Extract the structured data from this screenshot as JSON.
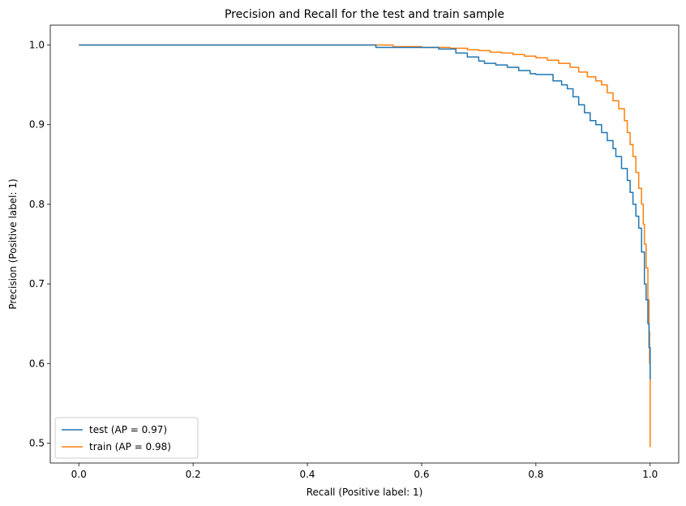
{
  "chart_data": {
    "type": "line",
    "title": "Precision and Recall for the test and train sample",
    "xlabel": "Recall (Positive label: 1)",
    "ylabel": "Precision (Positive label: 1)",
    "xlim": [
      -0.05,
      1.05
    ],
    "ylim": [
      0.475,
      1.025
    ],
    "xticks": [
      0.0,
      0.2,
      0.4,
      0.6,
      0.8,
      1.0
    ],
    "xtick_labels": [
      "0.0",
      "0.2",
      "0.4",
      "0.6",
      "0.8",
      "1.0"
    ],
    "yticks": [
      0.5,
      0.6,
      0.7,
      0.8,
      0.9,
      1.0
    ],
    "ytick_labels": [
      "0.5",
      "0.6",
      "0.7",
      "0.8",
      "0.9",
      "1.0"
    ],
    "grid": false,
    "legend_position": "lower-left",
    "series": [
      {
        "name": "test (AP = 0.97)",
        "color": "#1f77b4",
        "x": [
          0.0,
          0.51,
          0.52,
          0.55,
          0.58,
          0.6,
          0.62,
          0.63,
          0.66,
          0.68,
          0.7,
          0.71,
          0.73,
          0.75,
          0.77,
          0.79,
          0.8,
          0.82,
          0.83,
          0.845,
          0.855,
          0.865,
          0.875,
          0.885,
          0.895,
          0.905,
          0.915,
          0.925,
          0.935,
          0.94,
          0.95,
          0.96,
          0.965,
          0.97,
          0.975,
          0.98,
          0.985,
          0.99,
          0.993,
          0.996,
          0.998,
          1.0
        ],
        "y": [
          1.0,
          1.0,
          0.997,
          0.997,
          0.997,
          0.997,
          0.997,
          0.995,
          0.99,
          0.985,
          0.98,
          0.977,
          0.975,
          0.972,
          0.968,
          0.964,
          0.963,
          0.963,
          0.955,
          0.95,
          0.945,
          0.935,
          0.925,
          0.915,
          0.905,
          0.9,
          0.89,
          0.88,
          0.87,
          0.86,
          0.845,
          0.83,
          0.815,
          0.8,
          0.785,
          0.77,
          0.74,
          0.7,
          0.68,
          0.65,
          0.62,
          0.58
        ]
      },
      {
        "name": "train (AP = 0.98)",
        "color": "#ff7f0e",
        "x": [
          0.0,
          0.5,
          0.55,
          0.6,
          0.65,
          0.68,
          0.7,
          0.72,
          0.74,
          0.76,
          0.78,
          0.8,
          0.82,
          0.84,
          0.86,
          0.875,
          0.89,
          0.905,
          0.915,
          0.925,
          0.935,
          0.945,
          0.955,
          0.96,
          0.965,
          0.97,
          0.975,
          0.98,
          0.985,
          0.988,
          0.99,
          0.993,
          0.996,
          0.998,
          0.999,
          1.0
        ],
        "y": [
          1.0,
          1.0,
          0.998,
          0.997,
          0.996,
          0.994,
          0.993,
          0.991,
          0.99,
          0.988,
          0.986,
          0.984,
          0.981,
          0.977,
          0.972,
          0.966,
          0.96,
          0.955,
          0.95,
          0.94,
          0.93,
          0.92,
          0.905,
          0.89,
          0.875,
          0.86,
          0.84,
          0.82,
          0.8,
          0.775,
          0.75,
          0.72,
          0.68,
          0.64,
          0.6,
          0.495
        ]
      }
    ]
  }
}
